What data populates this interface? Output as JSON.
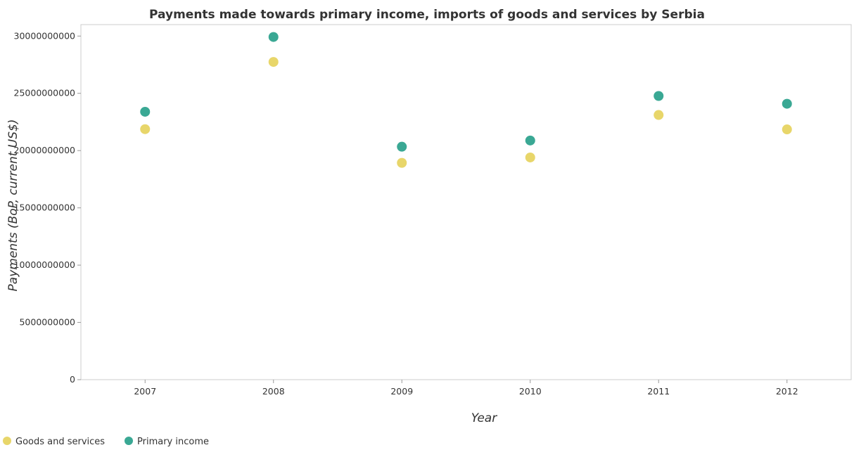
{
  "chart_data": {
    "type": "scatter",
    "title": "Payments made towards primary income, imports of goods and services by Serbia",
    "xlabel": "Year",
    "ylabel": "Payments (BoP, current US$)",
    "categories": [
      "2007",
      "2008",
      "2009",
      "2010",
      "2011",
      "2012"
    ],
    "ylim": [
      0,
      31000000000
    ],
    "yticks": [
      0,
      5000000000,
      10000000000,
      15000000000,
      20000000000,
      25000000000,
      30000000000
    ],
    "ytick_labels": [
      "0",
      "5000000000",
      "10000000000",
      "15000000000",
      "20000000000",
      "25000000000",
      "30000000000"
    ],
    "grid": false,
    "legend_position": "bottom-left",
    "series": [
      {
        "name": "Goods and services",
        "color": "#e8d66a",
        "values": [
          21870000000,
          27740000000,
          18930000000,
          19400000000,
          23110000000,
          21850000000
        ]
      },
      {
        "name": "Primary income",
        "color": "#3aa894",
        "values": [
          23390000000,
          29920000000,
          20340000000,
          20880000000,
          24770000000,
          24090000000
        ]
      }
    ]
  }
}
